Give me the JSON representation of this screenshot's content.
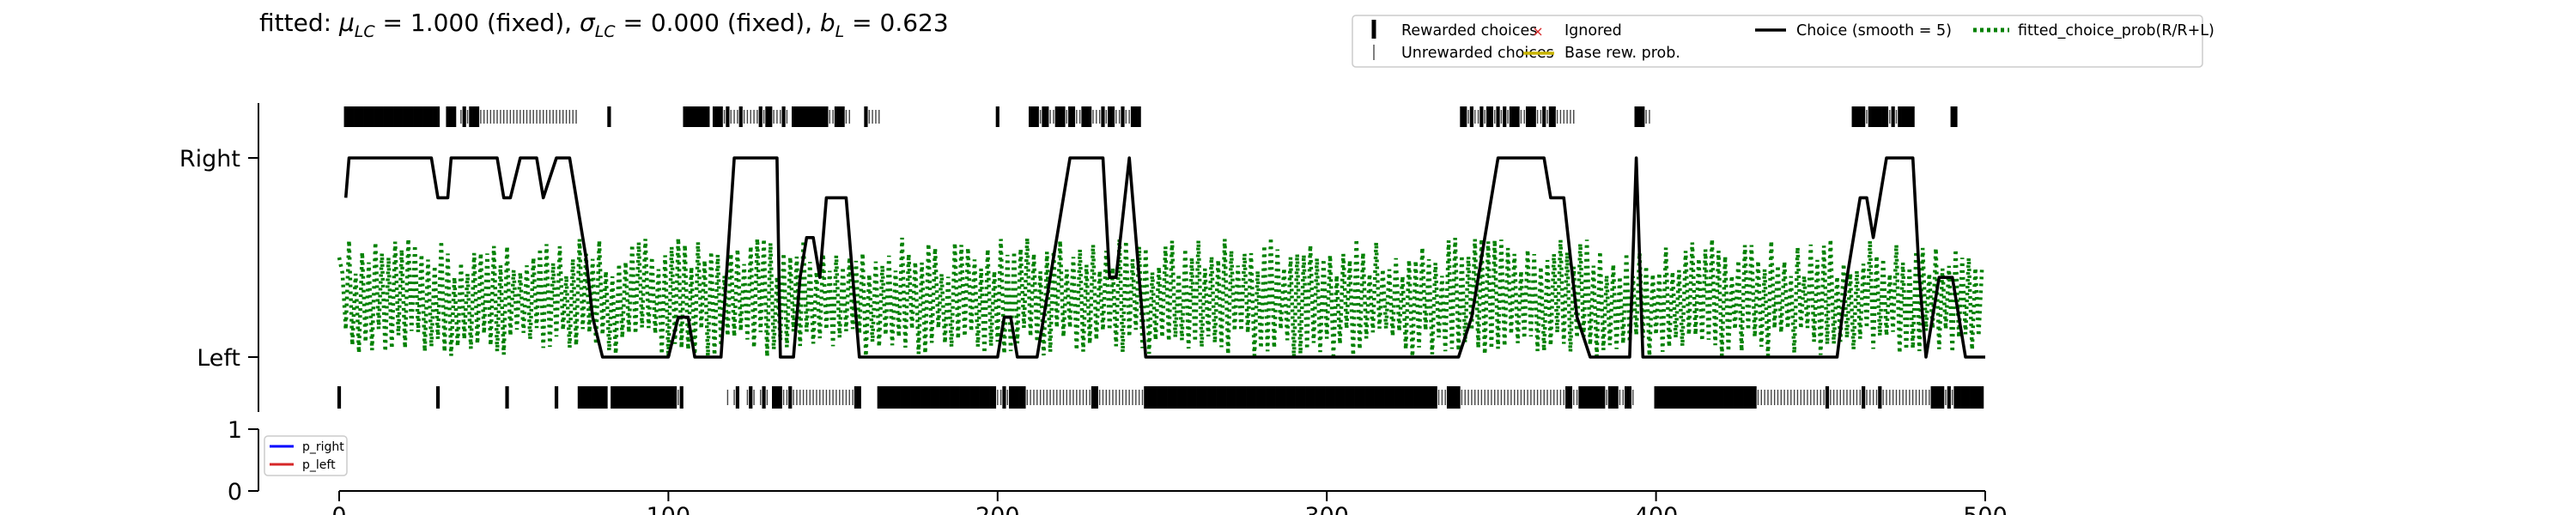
{
  "chart_data": [
    {
      "type": "line",
      "title": "fitted: μLC = 1.000 (fixed), σLC = 0.000 (fixed), bL = 0.623",
      "title_parts": {
        "prefix": "fitted: ",
        "mu": "μ",
        "mu_sub": "LC",
        "mu_rest": " = 1.000 (fixed), ",
        "sigma": "σ",
        "sigma_sub": "LC",
        "sigma_rest": " = 0.000 (fixed), ",
        "b": "b",
        "b_sub": "L",
        "b_rest": " = 0.623"
      },
      "xlim": [
        -25,
        500
      ],
      "ylabels": [
        "Left",
        "Right"
      ],
      "y_ticks": [
        0,
        1
      ],
      "legend": {
        "placement": "top-right",
        "entries": [
          "Rewarded choices",
          "Unrewarded choices",
          "Ignored",
          "Base rew. prob.",
          "Choice (smooth = 5)",
          "fitted_choice_prob(R/R+L)"
        ]
      },
      "colors": {
        "choice": "#000000",
        "fitted": "#008000",
        "ignored": "#d62728",
        "base_rew": "#c8b400"
      },
      "rewarded_right_trials": [
        2,
        3,
        4,
        5,
        6,
        7,
        8,
        9,
        10,
        11,
        12,
        13,
        14,
        15,
        16,
        17,
        18,
        19,
        20,
        21,
        22,
        23,
        24,
        25,
        26,
        27,
        28,
        29,
        30,
        33,
        34,
        35,
        38,
        40,
        41,
        42,
        82,
        105,
        106,
        107,
        108,
        109,
        110,
        111,
        112,
        114,
        115,
        116,
        118,
        122,
        128,
        130,
        131,
        135,
        138,
        139,
        140,
        141,
        142,
        143,
        144,
        145,
        146,
        147,
        148,
        151,
        152,
        153,
        160,
        200,
        210,
        211,
        212,
        214,
        215,
        218,
        219,
        220,
        222,
        223,
        226,
        227,
        228,
        232,
        234,
        235,
        238,
        241,
        242,
        243,
        341,
        342,
        344,
        347,
        349,
        350,
        352,
        354,
        356,
        357,
        358,
        361,
        362,
        363,
        366,
        368,
        369,
        394,
        395,
        396,
        460,
        461,
        462,
        463,
        465,
        466,
        467,
        468,
        469,
        470,
        472,
        474,
        475,
        476,
        477,
        478,
        490,
        491
      ],
      "unrewarded_right_trials": [
        37,
        39,
        43,
        44,
        45,
        46,
        47,
        48,
        49,
        50,
        51,
        52,
        53,
        54,
        55,
        56,
        57,
        58,
        59,
        60,
        61,
        62,
        63,
        64,
        65,
        66,
        67,
        68,
        69,
        70,
        71,
        72,
        117,
        119,
        120,
        121,
        123,
        124,
        125,
        126,
        127,
        129,
        132,
        133,
        134,
        136,
        149,
        150,
        154,
        155,
        161,
        162,
        163,
        164,
        213,
        216,
        217,
        221,
        224,
        225,
        229,
        230,
        231,
        233,
        236,
        237,
        239,
        240,
        343,
        345,
        346,
        348,
        351,
        353,
        355,
        359,
        360,
        364,
        365,
        367,
        370,
        371,
        372,
        373,
        374,
        375,
        397,
        398,
        464,
        471,
        473
      ],
      "rewarded_left_trials": [
        0,
        30,
        51,
        66,
        73,
        74,
        75,
        76,
        77,
        78,
        79,
        80,
        81,
        83,
        84,
        85,
        86,
        87,
        88,
        89,
        90,
        91,
        92,
        93,
        94,
        95,
        96,
        97,
        98,
        99,
        100,
        101,
        102,
        104,
        121,
        125,
        129,
        132,
        133,
        134,
        137,
        157,
        158,
        164,
        165,
        166,
        167,
        168,
        169,
        170,
        171,
        172,
        173,
        174,
        175,
        176,
        177,
        178,
        179,
        180,
        181,
        182,
        183,
        184,
        185,
        186,
        187,
        188,
        189,
        190,
        191,
        192,
        193,
        194,
        195,
        196,
        197,
        198,
        199,
        202,
        204,
        205,
        206,
        207,
        208,
        229,
        230,
        245,
        246,
        247,
        248,
        249,
        250,
        251,
        252,
        253,
        254,
        255,
        256,
        257,
        258,
        259,
        260,
        261,
        262,
        263,
        264,
        265,
        266,
        267,
        268,
        269,
        270,
        271,
        272,
        273,
        274,
        275,
        276,
        277,
        278,
        279,
        280,
        281,
        282,
        283,
        284,
        285,
        286,
        287,
        288,
        289,
        290,
        291,
        292,
        293,
        294,
        295,
        296,
        297,
        298,
        299,
        300,
        301,
        302,
        303,
        304,
        305,
        306,
        307,
        308,
        309,
        310,
        311,
        312,
        313,
        314,
        315,
        316,
        317,
        318,
        319,
        320,
        321,
        322,
        323,
        324,
        325,
        326,
        327,
        328,
        329,
        330,
        331,
        332,
        333,
        337,
        338,
        339,
        340,
        373,
        374,
        377,
        378,
        379,
        380,
        381,
        382,
        383,
        384,
        386,
        387,
        388,
        391,
        392,
        400,
        401,
        402,
        403,
        404,
        405,
        406,
        407,
        408,
        409,
        410,
        411,
        412,
        413,
        414,
        415,
        416,
        417,
        418,
        419,
        420,
        421,
        422,
        423,
        424,
        425,
        426,
        427,
        428,
        429,
        430,
        452,
        463,
        468,
        484,
        485,
        486,
        487,
        489,
        491,
        492,
        493,
        494,
        495,
        496,
        497,
        498,
        499
      ],
      "unrewarded_left_trials": [
        103,
        118,
        120,
        124,
        126,
        128,
        130,
        135,
        136,
        138,
        139,
        140,
        141,
        142,
        143,
        144,
        145,
        146,
        147,
        148,
        149,
        150,
        151,
        152,
        153,
        154,
        155,
        156,
        200,
        201,
        203,
        209,
        210,
        211,
        212,
        213,
        214,
        215,
        216,
        217,
        218,
        219,
        220,
        221,
        222,
        223,
        224,
        225,
        226,
        227,
        228,
        231,
        232,
        233,
        234,
        235,
        236,
        237,
        238,
        239,
        240,
        241,
        242,
        243,
        244,
        334,
        335,
        336,
        341,
        342,
        343,
        344,
        345,
        346,
        347,
        348,
        349,
        350,
        351,
        352,
        353,
        354,
        355,
        356,
        357,
        358,
        359,
        360,
        361,
        362,
        363,
        364,
        365,
        366,
        367,
        368,
        369,
        370,
        371,
        372,
        375,
        376,
        385,
        389,
        390,
        393,
        431,
        432,
        433,
        434,
        435,
        436,
        437,
        438,
        439,
        440,
        441,
        442,
        443,
        444,
        445,
        446,
        447,
        448,
        449,
        450,
        451,
        453,
        454,
        455,
        456,
        457,
        458,
        459,
        460,
        461,
        462,
        464,
        465,
        466,
        467,
        469,
        470,
        471,
        472,
        473,
        474,
        475,
        476,
        477,
        478,
        479,
        480,
        481,
        482,
        483,
        488,
        490
      ],
      "choice_smooth_line": {
        "x": [
          2,
          3,
          10,
          20,
          28,
          30,
          33,
          34,
          38,
          42,
          48,
          50,
          52,
          55,
          60,
          62,
          66,
          70,
          75,
          77,
          80,
          84,
          100,
          103,
          104,
          106,
          108,
          110,
          112,
          116,
          120,
          122,
          124,
          125,
          126,
          128,
          130,
          133,
          134,
          138,
          140,
          142,
          144,
          146,
          148,
          152,
          154,
          158,
          162,
          166,
          170,
          180,
          190,
          200,
          202,
          204,
          206,
          208,
          210,
          212,
          222,
          226,
          230,
          232,
          234,
          236,
          240,
          245,
          250,
          300,
          340,
          344,
          346,
          348,
          350,
          352,
          354,
          358,
          362,
          366,
          368,
          372,
          376,
          380,
          392,
          394,
          396,
          400,
          440,
          455,
          458,
          460,
          462,
          464,
          466,
          468,
          470,
          472,
          474,
          476,
          478,
          480,
          482,
          486,
          488,
          490,
          494,
          500
        ],
        "y": [
          0.8,
          1,
          1,
          1,
          1,
          0.8,
          0.8,
          1,
          1,
          1,
          1,
          0.8,
          0.8,
          1,
          1,
          0.8,
          1,
          1,
          0.5,
          0.2,
          0,
          0,
          0,
          0.2,
          0.2,
          0.2,
          0,
          0,
          0,
          0,
          1,
          1,
          1,
          1,
          1,
          1,
          1,
          1,
          0,
          0,
          0.4,
          0.6,
          0.6,
          0.4,
          0.8,
          0.8,
          0.8,
          0,
          0,
          0,
          0,
          0,
          0,
          0,
          0.2,
          0.2,
          0,
          0,
          0,
          0,
          1,
          1,
          1,
          1,
          0.4,
          0.4,
          1,
          0,
          0,
          0,
          0,
          0.2,
          0.4,
          0.6,
          0.8,
          1,
          1,
          1,
          1,
          1,
          0.8,
          0.8,
          0.2,
          0,
          0,
          1,
          0,
          0,
          0,
          0,
          0.4,
          0.6,
          0.8,
          0.8,
          0.6,
          0.8,
          1,
          1,
          1,
          1,
          1,
          0.4,
          0,
          0.4,
          0.4,
          0.4,
          0,
          0
        ],
        "name": "Choice (smooth = 5)"
      },
      "fitted_choice_prob": {
        "name": "fitted_choice_prob(R/R+L)",
        "value_range": [
          0,
          0.6
        ]
      }
    },
    {
      "type": "line",
      "xlim": [
        -25,
        500
      ],
      "ylim": [
        0,
        1
      ],
      "y_ticks": [
        0,
        1
      ],
      "x_ticks": [
        0,
        100,
        200,
        300,
        400,
        500
      ],
      "legend": {
        "placement": "upper-left",
        "entries": [
          "p_right",
          "p_left"
        ]
      },
      "colors": {
        "p_right": "#0000ff",
        "p_left": "#d62728"
      },
      "series": [
        {
          "name": "p_right",
          "values": []
        },
        {
          "name": "p_left",
          "values": []
        }
      ]
    }
  ]
}
